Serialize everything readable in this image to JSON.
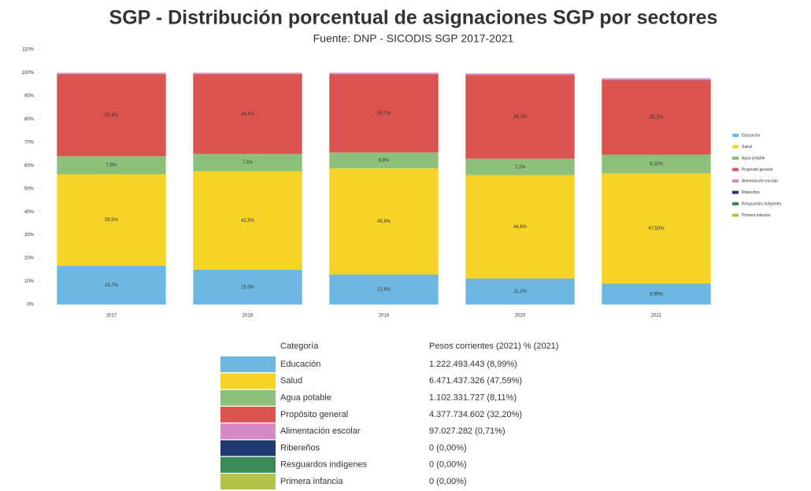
{
  "chart_data": {
    "type": "stacked_bar",
    "title": "SGP - Distribución porcentual de asignaciones SGP por sectores",
    "subtitle": "Fuente: DNP - SICODIS SGP 2017-2021",
    "categories": [
      "2017",
      "2018",
      "2019",
      "2020",
      "2021"
    ],
    "series": [
      {
        "name": "Educación",
        "color": "#6cb8e0",
        "values": [
          16.7,
          15.0,
          12.9,
          11.2,
          8.99
        ],
        "value_labels": [
          "16,7%",
          "15,0%",
          "12,9%",
          "11,2%",
          "8,99%"
        ]
      },
      {
        "name": "Salud",
        "color": "#f5d327",
        "values": [
          39.5,
          42.5,
          45.9,
          44.6,
          47.59
        ],
        "value_labels": [
          "39,5%",
          "42,5%",
          "45,9%",
          "44,6%",
          "47,59%"
        ]
      },
      {
        "name": "Agua potable",
        "color": "#8dc07a",
        "values": [
          7.8,
          7.5,
          6.8,
          7.1,
          8.11
        ],
        "value_labels": [
          "7,8%",
          "7,5%",
          "6,8%",
          "7,1%",
          "8,11%"
        ]
      },
      {
        "name": "Propósito general",
        "color": "#d9534f",
        "values": [
          35.4,
          34.4,
          33.7,
          36.1,
          32.2
        ],
        "value_labels": [
          "35,4%",
          "34,4%",
          "33,7%",
          "36,1%",
          "32,2%"
        ]
      },
      {
        "name": "Alimentación escolar",
        "color": "#d48ac6",
        "values": [
          0.6,
          0.6,
          0.7,
          0.7,
          0.71
        ]
      },
      {
        "name": "Ribereños",
        "color": "#1f3a6e",
        "values": [
          0,
          0,
          0,
          0,
          0
        ]
      },
      {
        "name": "Resguardos indígenes",
        "color": "#3a8a55",
        "values": [
          0,
          0,
          0,
          0,
          0
        ]
      },
      {
        "name": "Primera infancia",
        "color": "#b5c24a",
        "values": [
          0,
          0,
          0,
          0,
          0
        ]
      }
    ],
    "ylim": [
      0,
      110
    ],
    "yticks": [
      {
        "value": 0,
        "label": "0%"
      },
      {
        "value": 10,
        "label": "10%"
      },
      {
        "value": 20,
        "label": "20%"
      },
      {
        "value": 30,
        "label": "30%"
      },
      {
        "value": 40,
        "label": "40%"
      },
      {
        "value": 50,
        "label": "50%"
      },
      {
        "value": 60,
        "label": "60%"
      },
      {
        "value": 70,
        "label": "70%"
      },
      {
        "value": 80,
        "label": "80%"
      },
      {
        "value": 90,
        "label": "90%"
      },
      {
        "value": 100,
        "label": "100%"
      },
      {
        "value": 110,
        "label": "110%"
      }
    ],
    "legend": "right"
  },
  "table": {
    "header": [
      "Categoría",
      "Pesos corrientes (2021)  % (2021)"
    ],
    "rows": [
      "1.222.493.443 (8,99%)",
      "6.471.437.326 (47,59%)",
      "1.102.331.727 (8,11%)",
      "4.377.734.602 (32,20%)",
      "97.027.282 (0,71%)",
      "0 (0,00%)",
      "0 (0,00%)",
      "0 (0,00%)"
    ]
  }
}
